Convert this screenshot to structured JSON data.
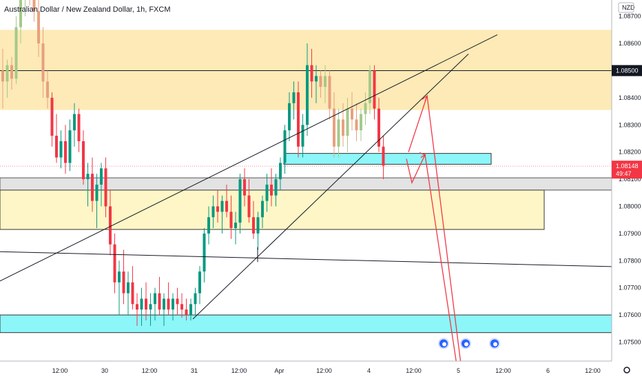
{
  "chart_data": {
    "type": "candlestick",
    "title": "Australian Dollar / New Zealand Dollar, 1h, FXCM",
    "currency": "NZD",
    "ylim": [
      1.0742,
      1.0876
    ],
    "y_ticks": [
      "1.08700",
      "1.08600",
      "1.08500",
      "1.08400",
      "1.08300",
      "1.08200",
      "1.08100",
      "1.08000",
      "1.07900",
      "1.07800",
      "1.07700",
      "1.07600",
      "1.07500"
    ],
    "x_ticks": [
      {
        "label": "12:00",
        "i": 6
      },
      {
        "label": "30",
        "i": 16
      },
      {
        "label": "12:00",
        "i": 26
      },
      {
        "label": "31",
        "i": 36
      },
      {
        "label": "12:00",
        "i": 46
      },
      {
        "label": "Apr",
        "i": 55
      },
      {
        "label": "12:00",
        "i": 65
      },
      {
        "label": "4",
        "i": 75
      },
      {
        "label": "12:00",
        "i": 85
      },
      {
        "label": "5",
        "i": 95
      },
      {
        "label": "12:00",
        "i": 105
      },
      {
        "label": "6",
        "i": 115
      },
      {
        "label": "12:00",
        "i": 125
      }
    ],
    "bar_spacing": 6.5,
    "first_bar_x": 2,
    "current_price": {
      "value": 1.08148,
      "label": "1.08148",
      "countdown": "49:47",
      "color": "#f23645"
    },
    "level_label": {
      "value": 1.085,
      "label": "1.08500"
    },
    "colors": {
      "up": "#089981",
      "down": "#f23645",
      "up_faded": "#a5c98a",
      "down_faded": "#e8a07f"
    },
    "candles": [
      [
        1.085,
        1.0858,
        1.0836,
        1.0846
      ],
      [
        1.0846,
        1.0854,
        1.084,
        1.0852
      ],
      [
        1.0852,
        1.0855,
        1.0843,
        1.0847
      ],
      [
        1.0847,
        1.087,
        1.0845,
        1.0866
      ],
      [
        1.0866,
        1.088,
        1.086,
        1.0876
      ],
      [
        1.0876,
        1.089,
        1.087,
        1.0884
      ],
      [
        1.0884,
        1.089,
        1.0874,
        1.0881
      ],
      [
        1.0881,
        1.0884,
        1.0868,
        1.0872
      ],
      [
        1.0872,
        1.0878,
        1.0855,
        1.086
      ],
      [
        1.086,
        1.0866,
        1.084,
        1.0846
      ],
      [
        1.0846,
        1.085,
        1.0836,
        1.084
      ],
      [
        1.084,
        1.0842,
        1.0822,
        1.0826
      ],
      [
        1.0826,
        1.0834,
        1.0816,
        1.0818
      ],
      [
        1.0818,
        1.0828,
        1.0814,
        1.0824
      ],
      [
        1.0824,
        1.083,
        1.0812,
        1.0816
      ],
      [
        1.0816,
        1.0832,
        1.0813,
        1.0828
      ],
      [
        1.0828,
        1.0838,
        1.0822,
        1.0834
      ],
      [
        1.0834,
        1.0836,
        1.082,
        1.0824
      ],
      [
        1.0824,
        1.0828,
        1.0808,
        1.081
      ],
      [
        1.081,
        1.0816,
        1.08,
        1.0812
      ],
      [
        1.0812,
        1.0818,
        1.0798,
        1.0802
      ],
      [
        1.0802,
        1.0812,
        1.0792,
        1.0808
      ],
      [
        1.0808,
        1.0816,
        1.08,
        1.0814
      ],
      [
        1.0814,
        1.0818,
        1.0796,
        1.08
      ],
      [
        1.08,
        1.0806,
        1.0782,
        1.0786
      ],
      [
        1.0786,
        1.079,
        1.0768,
        1.0772
      ],
      [
        1.0772,
        1.078,
        1.076,
        1.0776
      ],
      [
        1.0776,
        1.0784,
        1.0764,
        1.0768
      ],
      [
        1.0768,
        1.0776,
        1.076,
        1.0772
      ],
      [
        1.0772,
        1.0778,
        1.0762,
        1.0764
      ],
      [
        1.0764,
        1.0768,
        1.0756,
        1.0762
      ],
      [
        1.0762,
        1.077,
        1.0756,
        1.0766
      ],
      [
        1.0766,
        1.0772,
        1.0758,
        1.0762
      ],
      [
        1.0762,
        1.0768,
        1.0756,
        1.0764
      ],
      [
        1.0764,
        1.077,
        1.0758,
        1.0768
      ],
      [
        1.0768,
        1.0774,
        1.076,
        1.0762
      ],
      [
        1.0762,
        1.0768,
        1.0756,
        1.0766
      ],
      [
        1.0766,
        1.0772,
        1.076,
        1.0762
      ],
      [
        1.0762,
        1.0768,
        1.0758,
        1.0766
      ],
      [
        1.0766,
        1.077,
        1.076,
        1.0764
      ],
      [
        1.0764,
        1.0768,
        1.0759,
        1.0762
      ],
      [
        1.0762,
        1.0766,
        1.0758,
        1.076
      ],
      [
        1.076,
        1.0766,
        1.0758,
        1.0764
      ],
      [
        1.0764,
        1.077,
        1.076,
        1.0768
      ],
      [
        1.0768,
        1.0778,
        1.0764,
        1.0776
      ],
      [
        1.0776,
        1.0792,
        1.0772,
        1.079
      ],
      [
        1.079,
        1.08,
        1.0786,
        1.0796
      ],
      [
        1.0796,
        1.0804,
        1.0792,
        1.08
      ],
      [
        1.08,
        1.0806,
        1.0794,
        1.0798
      ],
      [
        1.0798,
        1.0804,
        1.079,
        1.0802
      ],
      [
        1.0802,
        1.0808,
        1.0796,
        1.0798
      ],
      [
        1.0798,
        1.0804,
        1.0788,
        1.0792
      ],
      [
        1.0792,
        1.0798,
        1.0786,
        1.0794
      ],
      [
        1.0794,
        1.0812,
        1.079,
        1.081
      ],
      [
        1.081,
        1.0814,
        1.08,
        1.0804
      ],
      [
        1.0804,
        1.081,
        1.0794,
        1.0796
      ],
      [
        1.0796,
        1.0802,
        1.0788,
        1.079
      ],
      [
        1.079,
        1.0798,
        1.0784,
        1.0796
      ],
      [
        1.0796,
        1.0804,
        1.0792,
        1.0802
      ],
      [
        1.0802,
        1.0812,
        1.0798,
        1.0808
      ],
      [
        1.0808,
        1.0814,
        1.08,
        1.0804
      ],
      [
        1.0804,
        1.0812,
        1.08,
        1.081
      ],
      [
        1.081,
        1.0818,
        1.0806,
        1.0816
      ],
      [
        1.0816,
        1.083,
        1.0812,
        1.0828
      ],
      [
        1.0828,
        1.0842,
        1.0824,
        1.0838
      ],
      [
        1.0838,
        1.0846,
        1.0832,
        1.0842
      ],
      [
        1.0842,
        1.0846,
        1.0818,
        1.0822
      ],
      [
        1.0822,
        1.0834,
        1.0818,
        1.083
      ],
      [
        1.083,
        1.086,
        1.0826,
        1.0852
      ],
      [
        1.0852,
        1.0858,
        1.084,
        1.0846
      ],
      [
        1.0846,
        1.0852,
        1.0838,
        1.0848
      ],
      [
        1.0848,
        1.085,
        1.084,
        1.0844
      ],
      [
        1.0844,
        1.0852,
        1.0838,
        1.0848
      ],
      [
        1.0848,
        1.085,
        1.0832,
        1.0836
      ],
      [
        1.0836,
        1.0842,
        1.0818,
        1.0822
      ],
      [
        1.0822,
        1.0836,
        1.0818,
        1.0832
      ],
      [
        1.0832,
        1.0838,
        1.0822,
        1.0826
      ],
      [
        1.0826,
        1.084,
        1.082,
        1.0836
      ],
      [
        1.0836,
        1.0842,
        1.0828,
        1.0832
      ],
      [
        1.0832,
        1.0838,
        1.0824,
        1.0828
      ],
      [
        1.0828,
        1.0836,
        1.0824,
        1.0834
      ],
      [
        1.0834,
        1.0842,
        1.083,
        1.0838
      ],
      [
        1.0838,
        1.0852,
        1.0834,
        1.085
      ],
      [
        1.085,
        1.0852,
        1.0832,
        1.0836
      ],
      [
        1.0836,
        1.084,
        1.082,
        1.0822
      ],
      [
        1.0822,
        1.0826,
        1.081,
        1.0815
      ]
    ],
    "zones": [
      {
        "y1": 1.0865,
        "y2": 1.08355,
        "color": "#fbd97a",
        "opacity": 0.55,
        "x_end": "axis"
      },
      {
        "y1": 1.0806,
        "y2": 1.07915,
        "color": "#fdf0a0",
        "opacity": 0.6,
        "border": "#333333",
        "x_end": 790
      },
      {
        "y1": 1.08105,
        "y2": 1.0806,
        "color": "#c8c8c8",
        "opacity": 0.5,
        "border": "#555555",
        "x_end": "axis"
      },
      {
        "y1": 1.076,
        "y2": 1.07535,
        "color": "#7ff5f8",
        "opacity": 0.9,
        "border": "#333333",
        "x_end": "axis"
      },
      {
        "y1": 1.08195,
        "y2": 1.08155,
        "color": "#7ff5f8",
        "opacity": 0.9,
        "border": "#333333",
        "x_start": 412,
        "x_end": 713
      }
    ],
    "hlines": [
      {
        "value": 1.085,
        "color": "#131722"
      },
      {
        "value": 1.08148,
        "color": "#f23645",
        "style": "dotted"
      }
    ],
    "lines": [
      {
        "x1": 0,
        "y1": 1.07725,
        "x2": 722,
        "y2": 1.08632,
        "color": "#131722"
      },
      {
        "x1": 280,
        "y1": 1.07585,
        "x2": 680,
        "y2": 1.08561,
        "color": "#131722"
      },
      {
        "x1": 0,
        "y1": 1.07833,
        "x2": 888,
        "y2": 1.07778,
        "color": "#131722"
      },
      {
        "x1": 374,
        "y1": 1.07795,
        "x2": 374,
        "y2": 1.0785,
        "color": "#131722"
      }
    ],
    "projection": [
      [
        590,
        1.08175
      ],
      [
        598,
        1.08087
      ],
      [
        617,
        1.0819
      ],
      [
        664,
        1.074
      ]
    ],
    "projection2": [
      [
        593,
        1.082
      ],
      [
        620,
        1.08407
      ],
      [
        670,
        1.074
      ]
    ],
    "event_icons": [
      {
        "x": 644,
        "y": 1.07495
      },
      {
        "x": 676,
        "y": 1.07495
      },
      {
        "x": 718,
        "y": 1.07495
      }
    ]
  }
}
